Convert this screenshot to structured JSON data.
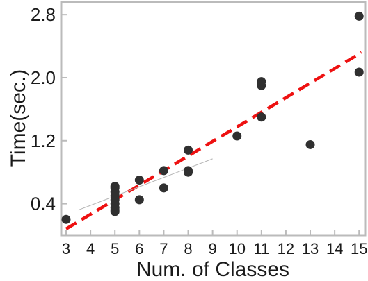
{
  "chart_data": {
    "type": "scatter",
    "title": "",
    "xlabel": "Num. of Classes",
    "ylabel": "Time(sec.)",
    "xlim": [
      2.8,
      15.25
    ],
    "ylim": [
      0.0,
      2.96
    ],
    "x_ticks": [
      3,
      4,
      5,
      6,
      7,
      8,
      9,
      10,
      11,
      12,
      13,
      14,
      15
    ],
    "x_tick_labels": [
      "3",
      "4",
      "5",
      "6",
      "7",
      "8",
      "9",
      "10",
      "11",
      "12",
      "13",
      "14",
      "15"
    ],
    "y_ticks": [
      0.4,
      1.2,
      2.0,
      2.8
    ],
    "y_tick_labels": [
      "0.4",
      "1.2",
      "2.0",
      "2.8"
    ],
    "grid": false,
    "legend": "none",
    "colors": {
      "points": "#303030",
      "trend_line": "#ee1111",
      "faint_line": "#b4b4b4",
      "axes": "#bbbbbb",
      "text": "#1a1a1a"
    },
    "series": [
      {
        "type": "scatter",
        "x": [
          3,
          5,
          5,
          5,
          5,
          5,
          5,
          5,
          5,
          5,
          6,
          6,
          7,
          7,
          8,
          8,
          8,
          10,
          11,
          11,
          11,
          13,
          15,
          15
        ],
        "y": [
          0.2,
          0.3,
          0.35,
          0.4,
          0.45,
          0.5,
          0.55,
          0.6,
          0.62,
          0.32,
          0.7,
          0.45,
          0.82,
          0.6,
          1.08,
          0.8,
          0.82,
          1.26,
          1.5,
          1.9,
          1.95,
          1.15,
          2.07,
          2.78
        ]
      },
      {
        "type": "line",
        "style": "dashed",
        "x": [
          3,
          15.1
        ],
        "y": [
          0.08,
          2.32
        ]
      },
      {
        "type": "line",
        "style": "solid",
        "x": [
          3.5,
          9
        ],
        "y": [
          0.32,
          0.97
        ]
      }
    ]
  }
}
